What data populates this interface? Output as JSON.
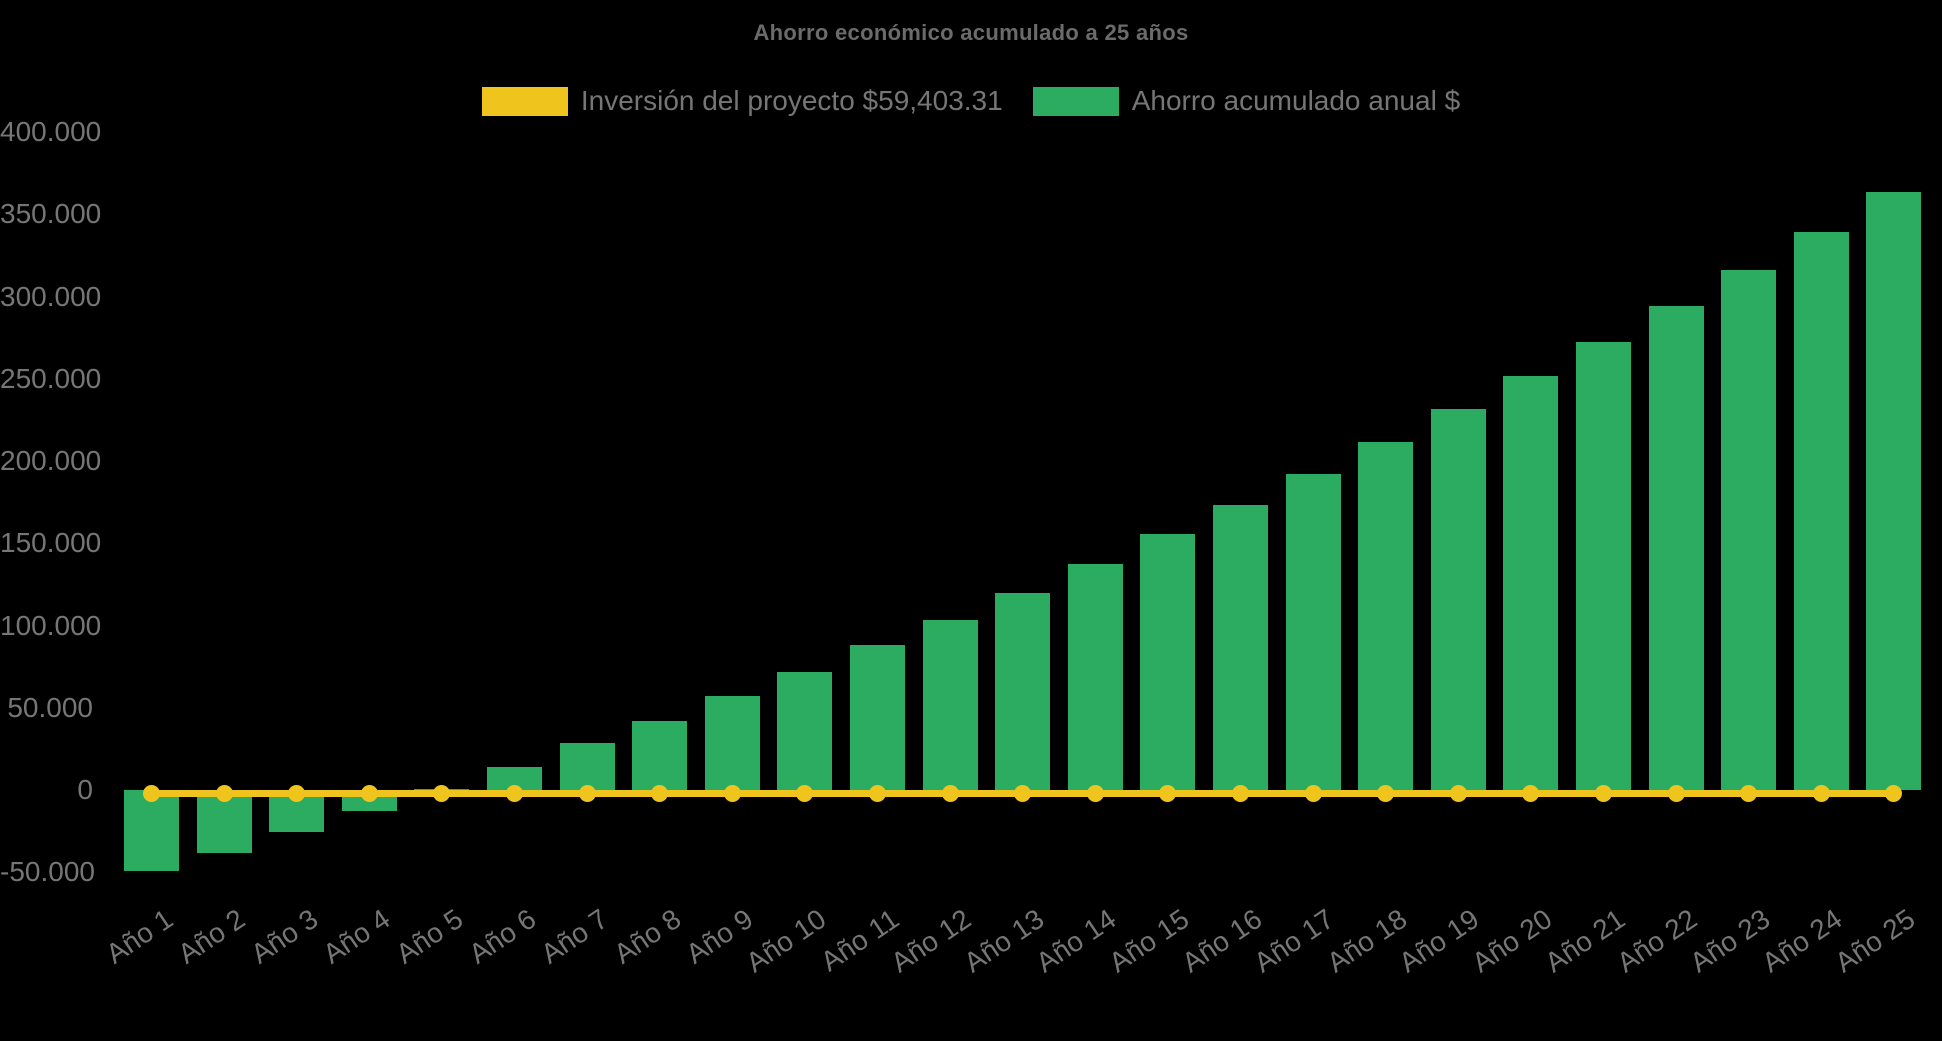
{
  "title": "Ahorro económico acumulado a 25 años",
  "colors": {
    "background": "#000000",
    "bar_green": "#2bac61",
    "line_yellow": "#eec41d",
    "text_gray": "#767676",
    "title_gray": "#6b6b6b"
  },
  "legend": {
    "items": [
      {
        "id": "investment",
        "label": "Inversión del proyecto $59,403.31",
        "color": "#eec41d"
      },
      {
        "id": "savings",
        "label": "Ahorro acumulado anual $",
        "color": "#2bac61"
      }
    ]
  },
  "chart_data": {
    "type": "bar",
    "title": "Ahorro económico acumulado a 25 años",
    "legend_position": "top",
    "background": "#000000",
    "grid": false,
    "categories": [
      "Año 1",
      "Año 2",
      "Año 3",
      "Año 4",
      "Año 5",
      "Año 6",
      "Año 7",
      "Año 8",
      "Año 9",
      "Año 10",
      "Año 11",
      "Año 12",
      "Año 13",
      "Año 14",
      "Año 15",
      "Año 16",
      "Año 17",
      "Año 18",
      "Año 19",
      "Año 20",
      "Año 21",
      "Año 22",
      "Año 23",
      "Año 24",
      "Año 25"
    ],
    "series": [
      {
        "name": "Inversión del proyecto $59,403.31",
        "type": "line",
        "color": "#eec41d",
        "values": [
          0,
          0,
          0,
          0,
          0,
          0,
          0,
          0,
          0,
          0,
          0,
          0,
          0,
          0,
          0,
          0,
          0,
          0,
          0,
          0,
          0,
          0,
          0,
          0,
          0
        ]
      },
      {
        "name": "Ahorro acumulado anual $",
        "type": "bar",
        "color": "#2bac61",
        "values": [
          -49500,
          -38000,
          -25400,
          -12500,
          500,
          13700,
          28400,
          41800,
          57000,
          71700,
          88100,
          103400,
          119800,
          137500,
          155500,
          173500,
          191800,
          211300,
          231500,
          251600,
          272500,
          294300,
          316200,
          339000,
          363500
        ]
      }
    ],
    "y_axis": {
      "range": [
        -50000,
        400000
      ],
      "tick_step": 50000,
      "ticks": [
        {
          "label": "400.000",
          "value": 400000
        },
        {
          "label": "350.000",
          "value": 350000
        },
        {
          "label": "300.000",
          "value": 300000
        },
        {
          "label": "250.000",
          "value": 250000
        },
        {
          "label": "200.000",
          "value": 200000
        },
        {
          "label": "150.000",
          "value": 150000
        },
        {
          "label": "100.000",
          "value": 100000
        },
        {
          "label": "50.000",
          "value": 50000
        },
        {
          "label": "0",
          "value": 0
        },
        {
          "label": "-50.000",
          "value": -50000
        }
      ]
    },
    "x_axis": {
      "label_rotation_deg": -34
    }
  }
}
